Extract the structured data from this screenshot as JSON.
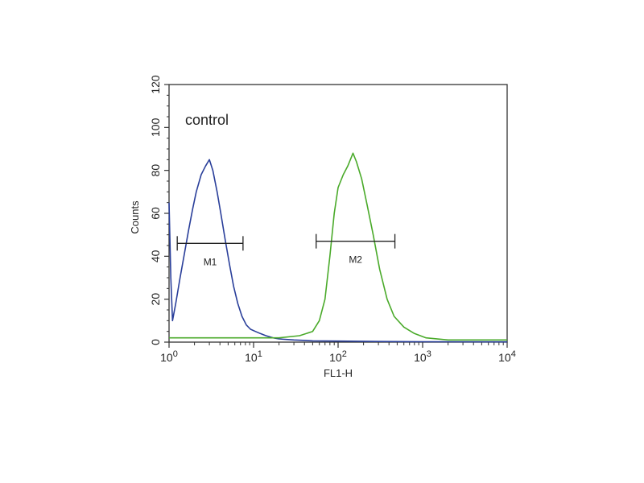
{
  "chart_data": {
    "type": "line",
    "title": "",
    "annotation": "control",
    "xlabel": "FL1-H",
    "ylabel": "Counts",
    "xscale": "log",
    "xlim": [
      1,
      10000
    ],
    "ylim": [
      0,
      120
    ],
    "y_ticks": [
      "0",
      "20",
      "40",
      "60",
      "80",
      "100",
      "120"
    ],
    "x_ticks": [
      {
        "base": "10",
        "exp": "0",
        "value": 1
      },
      {
        "base": "10",
        "exp": "1",
        "value": 10
      },
      {
        "base": "10",
        "exp": "2",
        "value": 100
      },
      {
        "base": "10",
        "exp": "3",
        "value": 1000
      },
      {
        "base": "10",
        "exp": "4",
        "value": 10000
      }
    ],
    "series": [
      {
        "color": "#2a3f9a",
        "points": [
          [
            1.0,
            65
          ],
          [
            1.05,
            30
          ],
          [
            1.1,
            10
          ],
          [
            1.2,
            18
          ],
          [
            1.35,
            30
          ],
          [
            1.5,
            40
          ],
          [
            1.7,
            52
          ],
          [
            1.9,
            62
          ],
          [
            2.1,
            70
          ],
          [
            2.4,
            78
          ],
          [
            2.7,
            82
          ],
          [
            3.0,
            85
          ],
          [
            3.3,
            80
          ],
          [
            3.7,
            70
          ],
          [
            4.1,
            60
          ],
          [
            4.6,
            48
          ],
          [
            5.2,
            36
          ],
          [
            5.8,
            26
          ],
          [
            6.5,
            18
          ],
          [
            7.3,
            12
          ],
          [
            8.2,
            8
          ],
          [
            9.2,
            6
          ],
          [
            10.5,
            5
          ],
          [
            12,
            4
          ],
          [
            14,
            3
          ],
          [
            17,
            2
          ],
          [
            20,
            1.5
          ],
          [
            30,
            1
          ],
          [
            50,
            0.6
          ],
          [
            100,
            0.5
          ],
          [
            300,
            0.3
          ],
          [
            1000,
            0.2
          ],
          [
            10000,
            0.1
          ]
        ]
      },
      {
        "color": "#4aaa2a",
        "points": [
          [
            1.0,
            2
          ],
          [
            2,
            2
          ],
          [
            5,
            2
          ],
          [
            10,
            2
          ],
          [
            20,
            2
          ],
          [
            35,
            3
          ],
          [
            50,
            5
          ],
          [
            60,
            10
          ],
          [
            70,
            20
          ],
          [
            80,
            40
          ],
          [
            90,
            60
          ],
          [
            100,
            72
          ],
          [
            115,
            78
          ],
          [
            130,
            82
          ],
          [
            150,
            88
          ],
          [
            165,
            84
          ],
          [
            190,
            76
          ],
          [
            220,
            64
          ],
          [
            260,
            50
          ],
          [
            310,
            34
          ],
          [
            380,
            20
          ],
          [
            460,
            12
          ],
          [
            600,
            7
          ],
          [
            800,
            4
          ],
          [
            1100,
            2
          ],
          [
            2000,
            1
          ],
          [
            5000,
            1
          ],
          [
            10000,
            1
          ]
        ]
      }
    ],
    "markers": [
      {
        "label": "M1",
        "x_range": [
          1.25,
          7.5
        ],
        "y": 46
      },
      {
        "label": "M2",
        "x_range": [
          55,
          470
        ],
        "y": 47
      }
    ]
  }
}
